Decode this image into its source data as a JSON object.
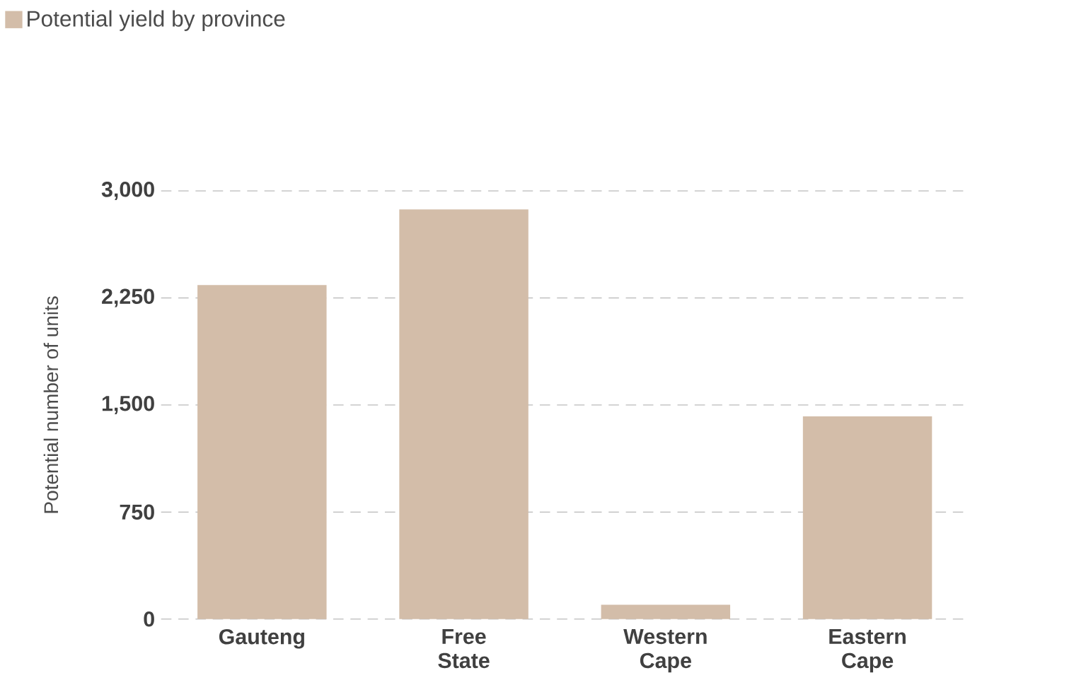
{
  "chart_data": {
    "type": "bar",
    "ylabel": "Potential number of units",
    "categories": [
      "Gauteng",
      "Free State",
      "Western Cape",
      "Eastern Cape"
    ],
    "series": [
      {
        "name": "Potential yield by province",
        "color": "#d3bda9",
        "values": [
          2340,
          2870,
          100,
          1420
        ]
      }
    ],
    "ylim": [
      0,
      3000
    ],
    "yticks": [
      0,
      {
        "value": 750,
        "label": "750"
      },
      {
        "value": 1500,
        "label": "1,500"
      },
      {
        "value": 2250,
        "label": "2,250"
      },
      {
        "value": 3000,
        "label": "3,000"
      }
    ],
    "grid": "y",
    "legend": "top left"
  }
}
